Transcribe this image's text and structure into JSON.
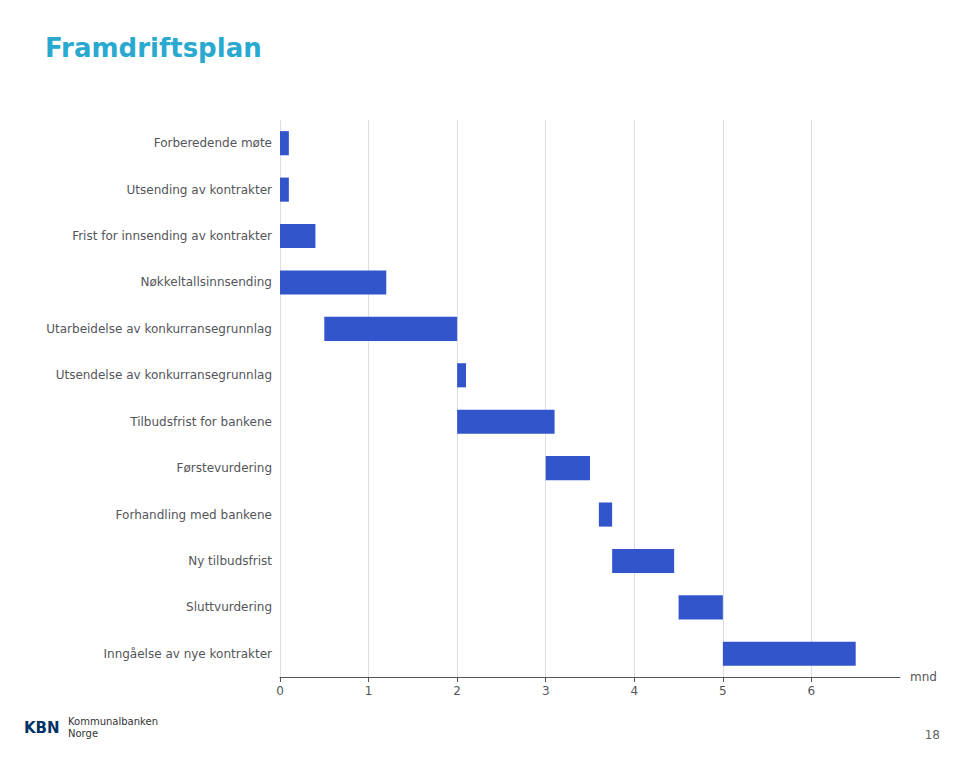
{
  "chart_data": {
    "type": "bar",
    "orientation": "horizontal",
    "title": "Framdriftsplan",
    "xlabel": "mnd",
    "categories": [
      "Forberedende møte",
      "Utsending av kontrakter",
      "Frist for innsending av kontrakter",
      "Nøkkeltallsinnsending",
      "Utarbeidelse av konkurransegrunnlag",
      "Utsendelse av konkurransegrunnlag",
      "Tilbudsfrist for bankene",
      "Førstevurdering",
      "Forhandling med bankene",
      "Ny tilbudsfrist",
      "Sluttvurdering",
      "Inngåelse av nye kontrakter"
    ],
    "starts": [
      0.0,
      0.0,
      0.0,
      0.0,
      0.5,
      2.0,
      2.0,
      3.0,
      3.6,
      3.75,
      4.5,
      5.0
    ],
    "values": [
      0.1,
      0.1,
      0.4,
      1.2,
      1.5,
      0.1,
      1.1,
      0.5,
      0.15,
      0.7,
      0.5,
      1.5
    ],
    "color": "#3355cc",
    "title_color": "#29a8d0",
    "xlim": [
      0,
      7.0
    ],
    "xticks": [
      0,
      1,
      2,
      3,
      4,
      5,
      6
    ],
    "grid": true,
    "annotations": [
      "18",
      "KBN",
      "Kommunalbanken\nNorge"
    ]
  }
}
